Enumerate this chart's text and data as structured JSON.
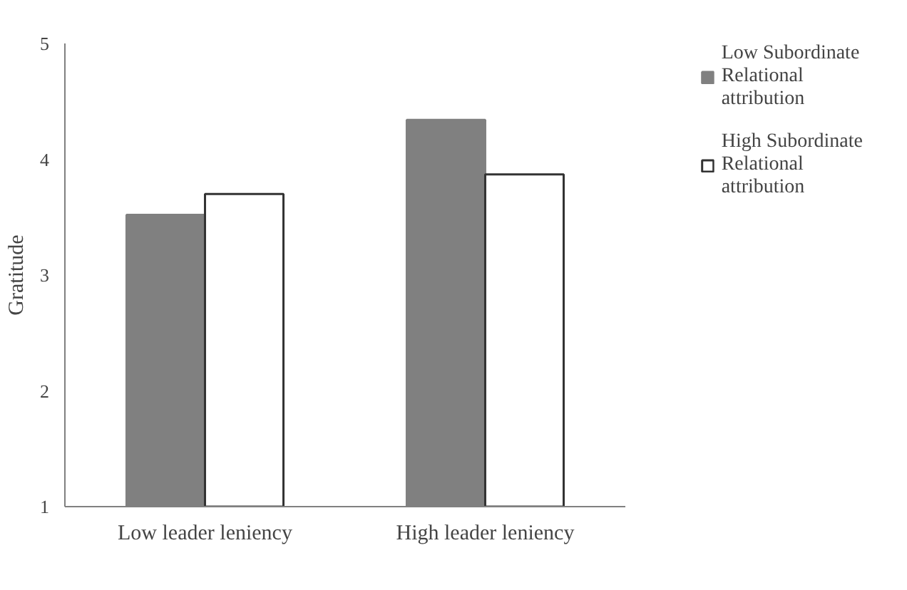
{
  "chart_data": {
    "type": "bar",
    "ylabel": "Gratitude",
    "categories": [
      "Low leader leniency",
      "High leader leniency"
    ],
    "series": [
      {
        "name": "Low Subordinate Relational attribution",
        "color": "#808080",
        "values": [
          3.52,
          4.34
        ]
      },
      {
        "name": "High Subordinate Relational attribution",
        "color": "#ffffff",
        "values": [
          3.7,
          3.87
        ]
      }
    ],
    "ylim": [
      1,
      5
    ],
    "yticks": [
      1,
      2,
      3,
      4,
      5
    ],
    "grid": false,
    "legend": "right"
  }
}
